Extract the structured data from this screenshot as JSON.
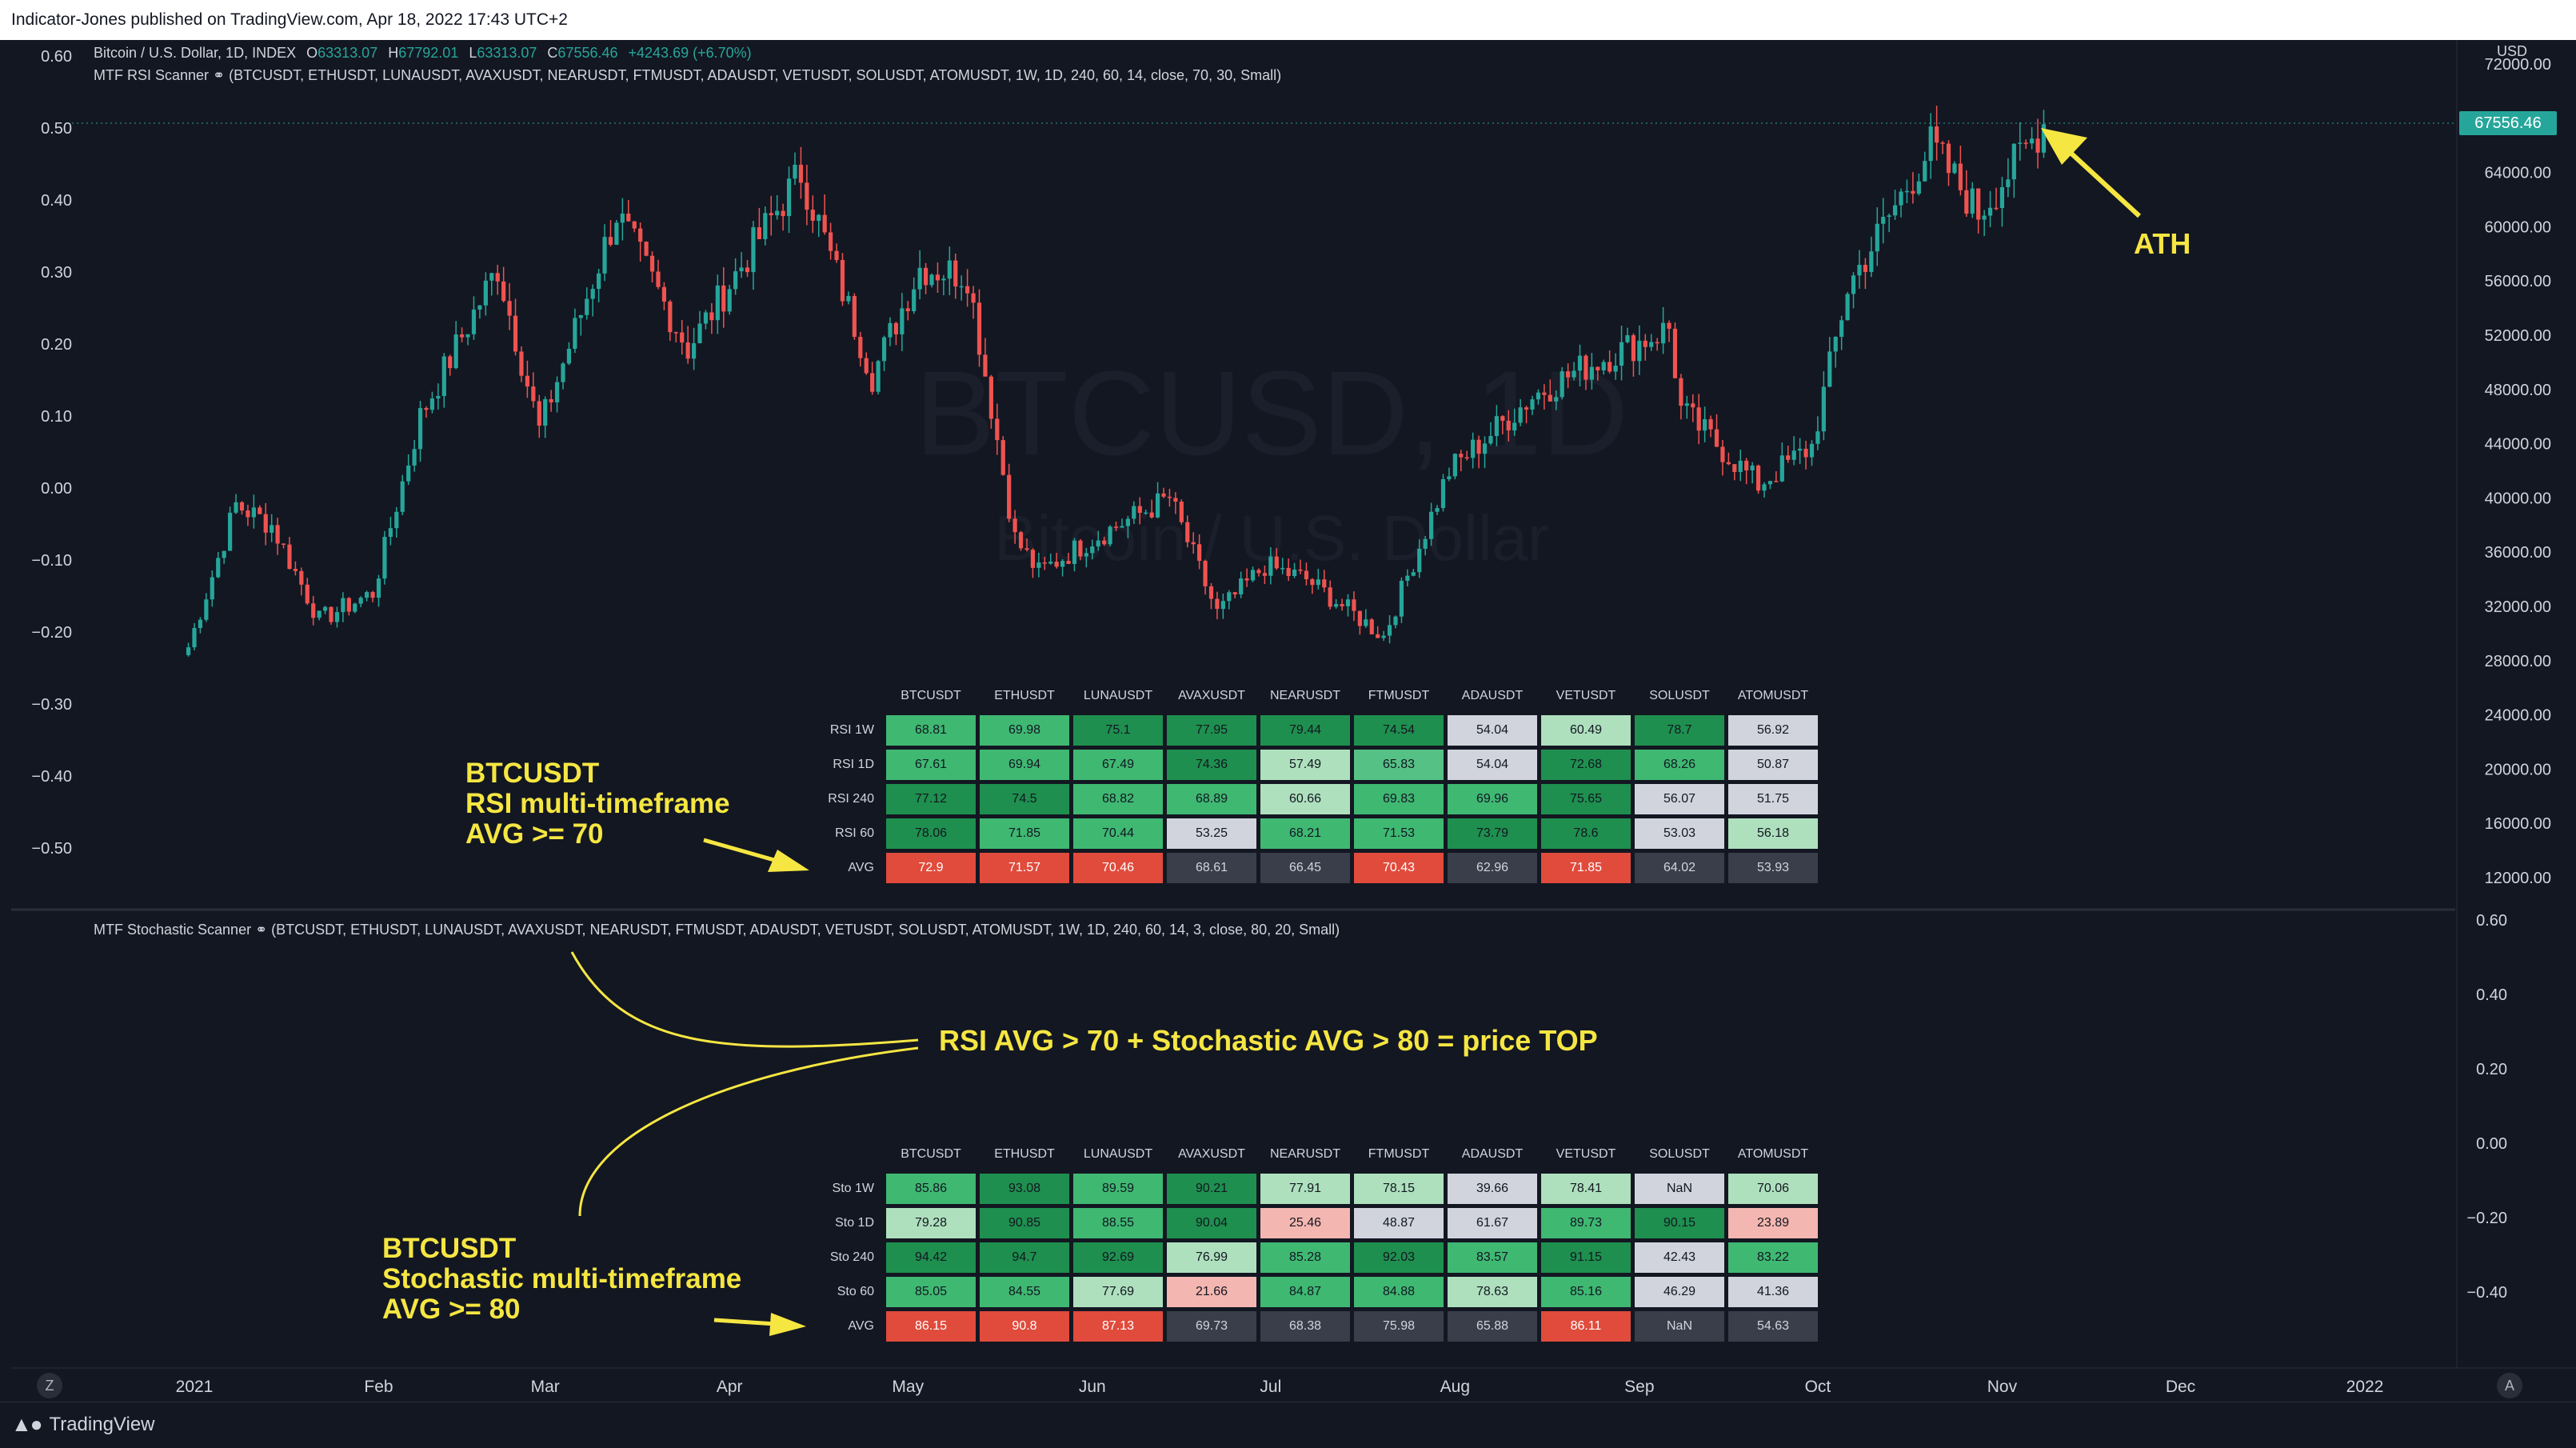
{
  "header": {
    "published": "Indicator-Jones published on TradingView.com, Apr 18, 2022 17:43 UTC+2"
  },
  "footer": {
    "brand": "TradingView",
    "z_button": "Z",
    "a_button": "A"
  },
  "legend": {
    "symbol": "Bitcoin / U.S. Dollar, 1D, INDEX",
    "o_label": "O",
    "o_value": "63313.07",
    "h_label": "H",
    "h_value": "67792.01",
    "l_label": "L",
    "l_value": "63313.07",
    "c_label": "C",
    "c_value": "67556.46",
    "change": "+4243.69 (+6.70%)",
    "rsi_indicator": "MTF RSI Scanner ⚭ (BTCUSDT, ETHUSDT, LUNAUSDT, AVAXUSDT, NEARUSDT, FTMUSDT, ADAUSDT, VETUSDT, SOLUSDT, ATOMUSDT, 1W, 1D, 240, 60, 14, close, 70, 30, Small)",
    "sto_indicator": "MTF Stochastic Scanner ⚭ (BTCUSDT, ETHUSDT, LUNAUSDT, AVAXUSDT, NEARUSDT, FTMUSDT, ADAUSDT, VETUSDT, SOLUSDT, ATOMUSDT, 1W, 1D, 240, 60, 14, 3, close, 80, 20, Small)"
  },
  "watermark": {
    "symbol": "BTCUSD, 1D",
    "name": "Bitcoin / U.S. Dollar"
  },
  "currency": "USD",
  "last_price": "67556.46",
  "colors": {
    "up": "#26a69a",
    "down": "#ef5350",
    "annot": "#f5e642",
    "bg": "#131722"
  },
  "annotations": {
    "ath": "ATH",
    "rsi_note": [
      "BTCUSDT",
      "RSI multi-timeframe",
      "AVG  >= 70"
    ],
    "sto_note": [
      "BTCUSDT",
      "Stochastic multi-timeframe",
      "AVG >= 80"
    ],
    "formula": "RSI AVG > 70 + Stochastic AVG > 80 = price TOP"
  },
  "chart_data": [
    {
      "type": "candlestick",
      "title": "Bitcoin / U.S. Dollar, 1D, INDEX",
      "x_ticks": [
        "2021",
        "Feb",
        "Mar",
        "Apr",
        "May",
        "Jun",
        "Jul",
        "Aug",
        "Sep",
        "Oct",
        "Nov",
        "Dec",
        "2022"
      ],
      "y_ticks_right": [
        "12000.00",
        "16000.00",
        "20000.00",
        "24000.00",
        "28000.00",
        "32000.00",
        "36000.00",
        "40000.00",
        "44000.00",
        "48000.00",
        "52000.00",
        "56000.00",
        "60000.00",
        "64000.00",
        "72000.00"
      ],
      "y_ticks_left": [
        "0.60",
        "0.50",
        "0.40",
        "0.30",
        "0.20",
        "0.10",
        "0.00",
        "−0.10",
        "−0.20",
        "−0.30",
        "−0.40",
        "−0.50"
      ],
      "ylim": [
        9000,
        73500
      ],
      "anchor_closes": [
        [
          "2020-12-31",
          29000
        ],
        [
          "2021-01-08",
          39500
        ],
        [
          "2021-01-14",
          38000
        ],
        [
          "2021-01-22",
          31000
        ],
        [
          "2021-01-31",
          33000
        ],
        [
          "2021-02-08",
          46000
        ],
        [
          "2021-02-21",
          57000
        ],
        [
          "2021-02-28",
          45000
        ],
        [
          "2021-03-13",
          61000
        ],
        [
          "2021-03-25",
          51000
        ],
        [
          "2021-04-13",
          64000
        ],
        [
          "2021-04-25",
          49000
        ],
        [
          "2021-05-03",
          57000
        ],
        [
          "2021-05-11",
          56500
        ],
        [
          "2021-05-19",
          37000
        ],
        [
          "2021-05-23",
          34500
        ],
        [
          "2021-06-01",
          37000
        ],
        [
          "2021-06-14",
          40000
        ],
        [
          "2021-06-22",
          31500
        ],
        [
          "2021-06-30",
          35000
        ],
        [
          "2021-07-07",
          34000
        ],
        [
          "2021-07-20",
          29800
        ],
        [
          "2021-07-31",
          42000
        ],
        [
          "2021-08-14",
          47500
        ],
        [
          "2021-08-22",
          49500
        ],
        [
          "2021-09-06",
          52500
        ],
        [
          "2021-09-08",
          46500
        ],
        [
          "2021-09-21",
          41000
        ],
        [
          "2021-09-30",
          43800
        ],
        [
          "2021-10-06",
          55500
        ],
        [
          "2021-10-20",
          66000
        ],
        [
          "2021-10-28",
          61000
        ],
        [
          "2021-11-08",
          67556
        ]
      ]
    },
    {
      "type": "table",
      "title": "MTF RSI Scanner",
      "columns": [
        "BTCUSDT",
        "ETHUSDT",
        "LUNAUSDT",
        "AVAXUSDT",
        "NEARUSDT",
        "FTMUSDT",
        "ADAUSDT",
        "VETUSDT",
        "SOLUSDT",
        "ATOMUSDT"
      ],
      "rows": [
        {
          "label": "RSI 1W",
          "values": [
            "68.81",
            "69.98",
            "75.1",
            "77.95",
            "79.44",
            "74.54",
            "54.04",
            "60.49",
            "78.7",
            "56.92"
          ],
          "colors": [
            "#3fb872",
            "#3fb872",
            "#1e8f4e",
            "#1e8f4e",
            "#1e8f4e",
            "#1e8f4e",
            "#d1d4dc",
            "#aee0bd",
            "#1e8f4e",
            "#d1d4dc"
          ]
        },
        {
          "label": "RSI 1D",
          "values": [
            "67.61",
            "69.94",
            "67.49",
            "74.36",
            "57.49",
            "65.83",
            "54.04",
            "72.68",
            "68.26",
            "50.87"
          ],
          "colors": [
            "#3fb872",
            "#3fb872",
            "#3fb872",
            "#1e8f4e",
            "#aee0bd",
            "#55c185",
            "#d1d4dc",
            "#1e8f4e",
            "#3fb872",
            "#d1d4dc"
          ]
        },
        {
          "label": "RSI 240",
          "values": [
            "77.12",
            "74.5",
            "68.82",
            "68.89",
            "60.66",
            "69.83",
            "69.96",
            "75.65",
            "56.07",
            "51.75"
          ],
          "colors": [
            "#1e8f4e",
            "#1e8f4e",
            "#3fb872",
            "#3fb872",
            "#aee0bd",
            "#3fb872",
            "#3fb872",
            "#1e8f4e",
            "#d1d4dc",
            "#d1d4dc"
          ]
        },
        {
          "label": "RSI 60",
          "values": [
            "78.06",
            "71.85",
            "70.44",
            "53.25",
            "68.21",
            "71.53",
            "73.79",
            "78.6",
            "53.03",
            "56.18"
          ],
          "colors": [
            "#1e8f4e",
            "#3fb872",
            "#3fb872",
            "#d1d4dc",
            "#3fb872",
            "#3fb872",
            "#1e8f4e",
            "#1e8f4e",
            "#d1d4dc",
            "#aee0bd"
          ]
        },
        {
          "label": "AVG",
          "values": [
            "72.9",
            "71.57",
            "70.46",
            "68.61",
            "66.45",
            "70.43",
            "62.96",
            "71.85",
            "64.02",
            "53.93"
          ],
          "colors": [
            "#e04b3c",
            "#e04b3c",
            "#e04b3c",
            "#3a3e4a",
            "#3a3e4a",
            "#e04b3c",
            "#3a3e4a",
            "#e04b3c",
            "#3a3e4a",
            "#3a3e4a"
          ]
        }
      ]
    },
    {
      "type": "table",
      "title": "MTF Stochastic Scanner",
      "columns": [
        "BTCUSDT",
        "ETHUSDT",
        "LUNAUSDT",
        "AVAXUSDT",
        "NEARUSDT",
        "FTMUSDT",
        "ADAUSDT",
        "VETUSDT",
        "SOLUSDT",
        "ATOMUSDT"
      ],
      "rows": [
        {
          "label": "Sto 1W",
          "values": [
            "85.86",
            "93.08",
            "89.59",
            "90.21",
            "77.91",
            "78.15",
            "39.66",
            "78.41",
            "NaN",
            "70.06"
          ],
          "colors": [
            "#3fb872",
            "#1e8f4e",
            "#3fb872",
            "#1e8f4e",
            "#aee0bd",
            "#aee0bd",
            "#d1d4dc",
            "#aee0bd",
            "#d1d4dc",
            "#aee0bd"
          ]
        },
        {
          "label": "Sto 1D",
          "values": [
            "79.28",
            "90.85",
            "88.55",
            "90.04",
            "25.46",
            "48.87",
            "61.67",
            "89.73",
            "90.15",
            "23.89"
          ],
          "colors": [
            "#aee0bd",
            "#1e8f4e",
            "#3fb872",
            "#1e8f4e",
            "#f4b6b0",
            "#d1d4dc",
            "#d1d4dc",
            "#3fb872",
            "#1e8f4e",
            "#f4b6b0"
          ]
        },
        {
          "label": "Sto 240",
          "values": [
            "94.42",
            "94.7",
            "92.69",
            "76.99",
            "85.28",
            "92.03",
            "83.57",
            "91.15",
            "42.43",
            "83.22"
          ],
          "colors": [
            "#1e8f4e",
            "#1e8f4e",
            "#1e8f4e",
            "#aee0bd",
            "#3fb872",
            "#1e8f4e",
            "#3fb872",
            "#1e8f4e",
            "#d1d4dc",
            "#3fb872"
          ]
        },
        {
          "label": "Sto 60",
          "values": [
            "85.05",
            "84.55",
            "77.69",
            "21.66",
            "84.87",
            "84.88",
            "78.63",
            "85.16",
            "46.29",
            "41.36"
          ],
          "colors": [
            "#3fb872",
            "#3fb872",
            "#aee0bd",
            "#f4b6b0",
            "#3fb872",
            "#3fb872",
            "#aee0bd",
            "#3fb872",
            "#d1d4dc",
            "#d1d4dc"
          ]
        },
        {
          "label": "AVG",
          "values": [
            "86.15",
            "90.8",
            "87.13",
            "69.73",
            "68.38",
            "75.98",
            "65.88",
            "86.11",
            "NaN",
            "54.63"
          ],
          "colors": [
            "#e04b3c",
            "#e04b3c",
            "#e04b3c",
            "#3a3e4a",
            "#3a3e4a",
            "#3a3e4a",
            "#3a3e4a",
            "#e04b3c",
            "#3a3e4a",
            "#3a3e4a"
          ]
        }
      ]
    },
    {
      "type": "line",
      "title": "MTF Stochastic Scanner pane",
      "y_ticks_right": [
        "0.60",
        "0.40",
        "0.20",
        "0.00",
        "−0.20",
        "−0.40"
      ]
    }
  ]
}
